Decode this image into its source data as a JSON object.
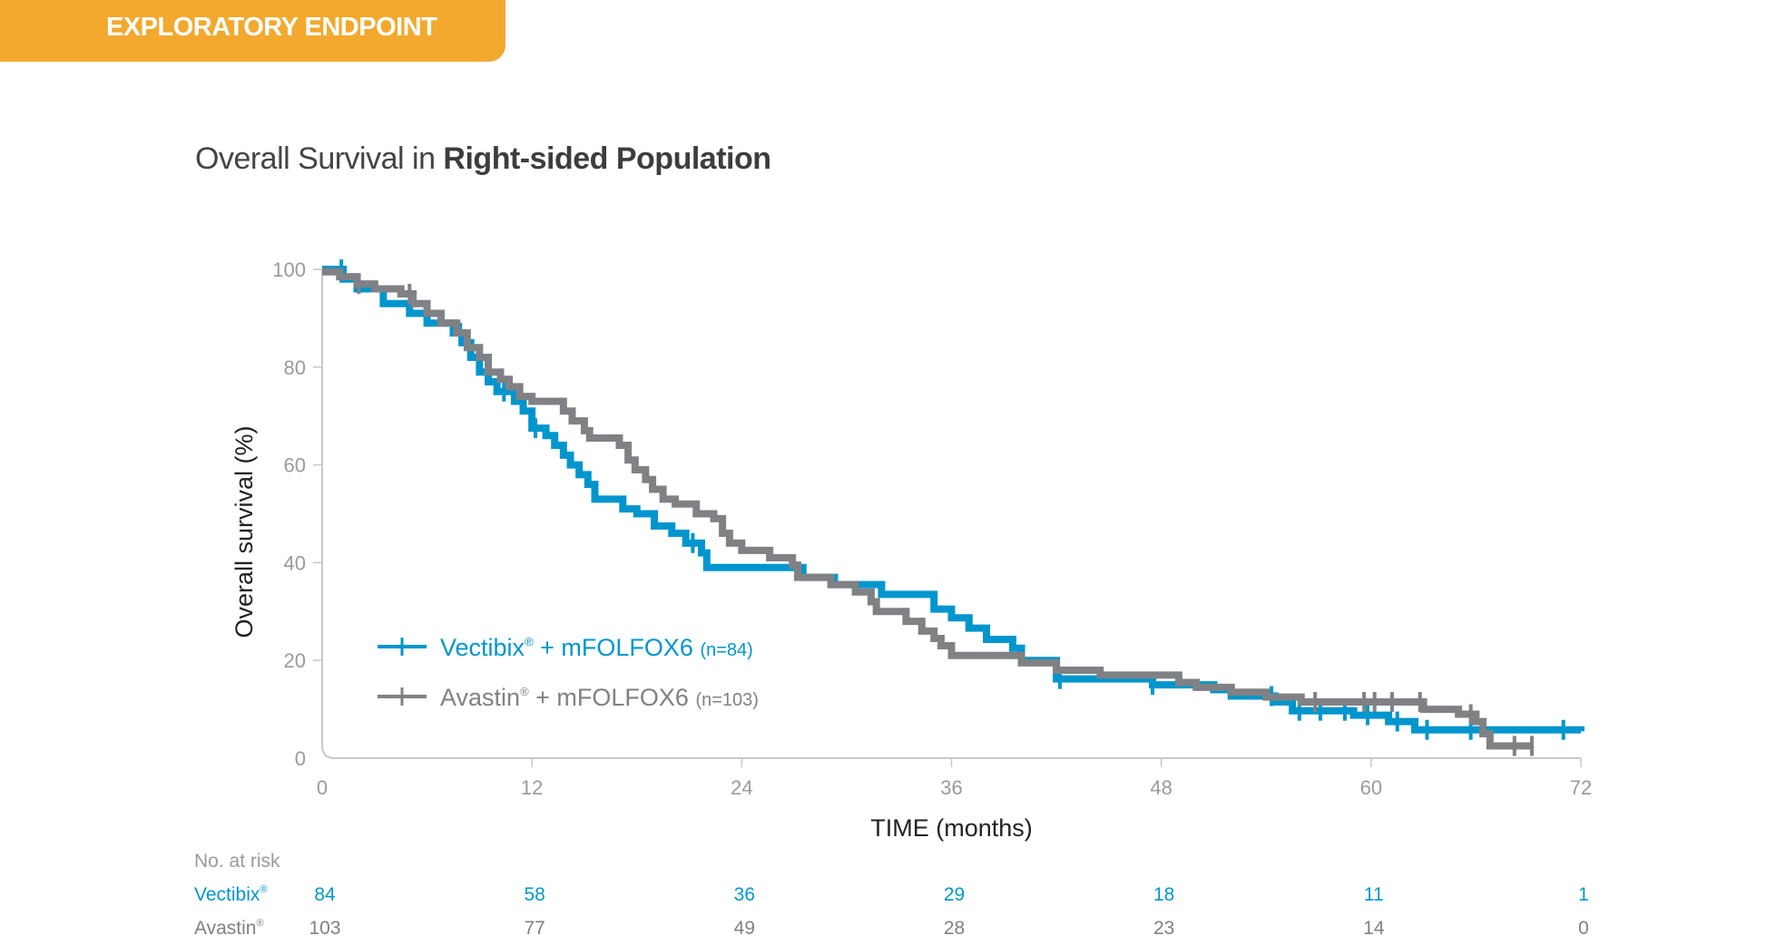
{
  "banner": {
    "label": "EXPLORATORY ENDPOINT",
    "color": "#F2A92E"
  },
  "title": {
    "prefix": "Overall Survival in ",
    "bold": "Right-sided Population"
  },
  "chart_data": {
    "type": "line",
    "subtype": "kaplan-meier step",
    "xlabel": "TIME (months)",
    "ylabel": "Overall survival (%)",
    "xlim": [
      0,
      72
    ],
    "ylim": [
      0,
      100
    ],
    "xticks": [
      0,
      12,
      24,
      36,
      48,
      60,
      72
    ],
    "yticks": [
      0,
      20,
      40,
      60,
      80,
      100
    ],
    "grid": false,
    "legend_position": "bottom-left",
    "series": [
      {
        "name": "Vectibix® + mFOLFOX6",
        "legend_main": "Vectibix",
        "legend_reg": "®",
        "legend_rest": " + mFOLFOX6 ",
        "legend_n": "(n=84)",
        "color": "#0096CD",
        "steps": [
          [
            0,
            100
          ],
          [
            1.2,
            98
          ],
          [
            2,
            96
          ],
          [
            3.5,
            93
          ],
          [
            5,
            91
          ],
          [
            6,
            89
          ],
          [
            7.5,
            87
          ],
          [
            8,
            85
          ],
          [
            8.5,
            82
          ],
          [
            9,
            79
          ],
          [
            9.5,
            77
          ],
          [
            10,
            75
          ],
          [
            11,
            73
          ],
          [
            11.5,
            71
          ],
          [
            12,
            67.5
          ],
          [
            12.8,
            66
          ],
          [
            13.3,
            64
          ],
          [
            13.8,
            62
          ],
          [
            14.2,
            60
          ],
          [
            14.7,
            58
          ],
          [
            15.2,
            56
          ],
          [
            15.6,
            53
          ],
          [
            17.2,
            51
          ],
          [
            18,
            50
          ],
          [
            19,
            47.5
          ],
          [
            20,
            46
          ],
          [
            20.8,
            44
          ],
          [
            21.7,
            42
          ],
          [
            22,
            39
          ],
          [
            27.5,
            37
          ],
          [
            29.3,
            35.5
          ],
          [
            32,
            33.5
          ],
          [
            35,
            30.5
          ],
          [
            36,
            28.7
          ],
          [
            37,
            26.6
          ],
          [
            38,
            24.3
          ],
          [
            39.5,
            22.5
          ],
          [
            40,
            20
          ],
          [
            42,
            16.2
          ],
          [
            47.5,
            15
          ],
          [
            51,
            14
          ],
          [
            52,
            12.7
          ],
          [
            54.5,
            11.5
          ],
          [
            55.5,
            9.7
          ],
          [
            59,
            8.8
          ],
          [
            61,
            7.5
          ],
          [
            62.5,
            5.8
          ],
          [
            72,
            5.5
          ]
        ],
        "censored": [
          1.1,
          7.9,
          10.4,
          12.2,
          21.2,
          42.2,
          47.5,
          54.3,
          55.9,
          57.1,
          58.5,
          59.8,
          61.5,
          63.2,
          65.7,
          71
        ]
      },
      {
        "name": "Avastin® + mFOLFOX6",
        "legend_main": "Avastin",
        "legend_reg": "®",
        "legend_rest": " + mFOLFOX6 ",
        "legend_n": "(n=103)",
        "color": "#808184",
        "steps": [
          [
            0,
            99.5
          ],
          [
            1,
            98.5
          ],
          [
            2,
            97
          ],
          [
            3,
            96
          ],
          [
            4.5,
            95
          ],
          [
            5.2,
            93
          ],
          [
            6,
            91
          ],
          [
            6.8,
            89
          ],
          [
            7.7,
            87
          ],
          [
            8.3,
            84
          ],
          [
            9,
            82
          ],
          [
            9.5,
            79
          ],
          [
            10.2,
            77.5
          ],
          [
            10.7,
            76
          ],
          [
            11.3,
            74
          ],
          [
            12,
            73
          ],
          [
            13.8,
            71
          ],
          [
            14.3,
            69
          ],
          [
            15,
            67
          ],
          [
            15.3,
            65.5
          ],
          [
            17,
            64
          ],
          [
            17.5,
            61
          ],
          [
            17.9,
            59
          ],
          [
            18.5,
            57
          ],
          [
            18.9,
            55
          ],
          [
            19.5,
            53
          ],
          [
            20.2,
            52
          ],
          [
            21.4,
            50
          ],
          [
            22.4,
            49
          ],
          [
            22.9,
            46
          ],
          [
            23.3,
            44
          ],
          [
            24,
            42.5
          ],
          [
            25.6,
            41
          ],
          [
            26.9,
            39.5
          ],
          [
            27.2,
            37
          ],
          [
            29.1,
            35.5
          ],
          [
            30.5,
            34
          ],
          [
            31.4,
            32
          ],
          [
            31.7,
            30
          ],
          [
            33.4,
            28
          ],
          [
            34.3,
            26
          ],
          [
            35,
            24.5
          ],
          [
            35.4,
            23
          ],
          [
            36,
            21
          ],
          [
            40,
            19.5
          ],
          [
            42,
            18
          ],
          [
            44.5,
            17
          ],
          [
            49,
            15.5
          ],
          [
            50,
            14.5
          ],
          [
            52,
            13.5
          ],
          [
            54,
            12.5
          ],
          [
            56,
            11.5
          ],
          [
            63,
            10
          ],
          [
            65,
            9
          ],
          [
            66,
            7.5
          ],
          [
            66.4,
            5
          ],
          [
            66.8,
            2.5
          ],
          [
            69.2,
            2.5
          ]
        ],
        "censored": [
          2.1,
          5.0,
          56.8,
          59.6,
          60.2,
          61.2,
          62.8,
          65.7,
          68.2,
          69.2
        ]
      }
    ],
    "at_risk": {
      "label": "No. at risk",
      "times": [
        0,
        12,
        24,
        36,
        48,
        60,
        72
      ],
      "rows": [
        {
          "name": "Vectibix",
          "reg": "®",
          "color": "#0096CD",
          "values": [
            "84",
            "58",
            "36",
            "29",
            "18",
            "11",
            "1"
          ]
        },
        {
          "name": "Avastin",
          "reg": "®",
          "color": "#808184",
          "values": [
            "103",
            "77",
            "49",
            "28",
            "23",
            "14",
            "0"
          ]
        }
      ]
    }
  }
}
